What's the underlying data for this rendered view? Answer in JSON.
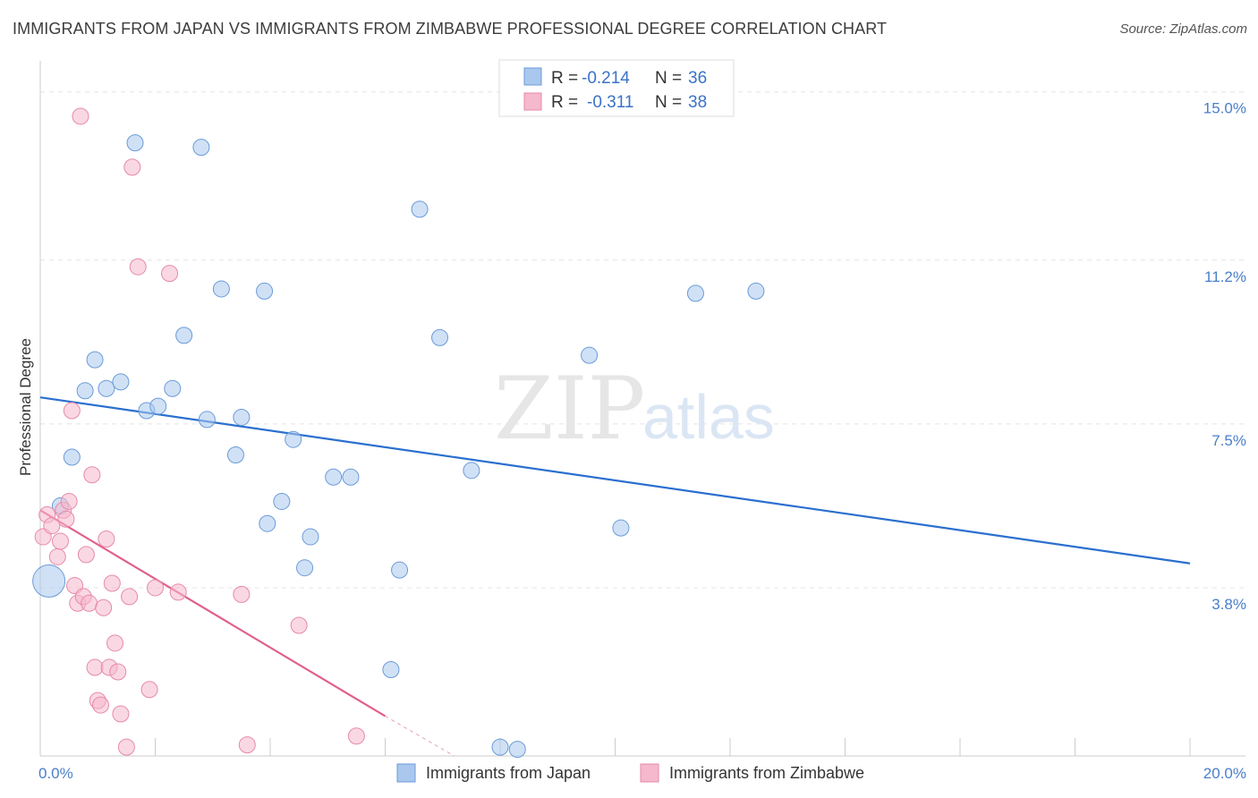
{
  "title": "IMMIGRANTS FROM JAPAN VS IMMIGRANTS FROM ZIMBABWE PROFESSIONAL DEGREE CORRELATION CHART",
  "source": "Source: ZipAtlas.com",
  "watermark": {
    "zip": "ZIP",
    "atlas": "atlas"
  },
  "chart_data": {
    "type": "scatter",
    "title": "IMMIGRANTS FROM JAPAN VS IMMIGRANTS FROM ZIMBABWE PROFESSIONAL DEGREE CORRELATION CHART",
    "xlabel": "",
    "ylabel": "Professional Degree",
    "xlim": [
      0,
      20
    ],
    "ylim": [
      0,
      15.5
    ],
    "x_tick_labels": {
      "left": "0.0%",
      "right": "20.0%"
    },
    "y_ticks": [
      {
        "value": 3.8,
        "label": "3.8%"
      },
      {
        "value": 7.5,
        "label": "7.5%"
      },
      {
        "value": 11.2,
        "label": "11.2%"
      },
      {
        "value": 15.0,
        "label": "15.0%"
      }
    ],
    "legend": [
      {
        "r_label": "R =",
        "r_value": "-0.214",
        "n_label": "N =",
        "n_value": "36",
        "color": "#aac8ee"
      },
      {
        "r_label": "R =",
        "r_value": "-0.311",
        "n_label": "N =",
        "n_value": "38",
        "color": "#f5b8cc"
      }
    ],
    "series": [
      {
        "name": "Immigrants from Japan",
        "color": "#aac8ee",
        "stroke": "#6a9bd8",
        "trend": {
          "x0": 0,
          "y0": 8.1,
          "x1": 20,
          "y1": 4.35,
          "color": "#2a6fcf"
        },
        "points": [
          [
            0.15,
            3.95,
            18
          ],
          [
            0.35,
            5.65,
            9
          ],
          [
            0.55,
            6.75,
            9
          ],
          [
            0.78,
            8.25,
            9
          ],
          [
            0.95,
            8.95,
            9
          ],
          [
            1.15,
            8.3,
            9
          ],
          [
            1.4,
            8.45,
            9
          ],
          [
            1.65,
            13.85,
            9
          ],
          [
            1.85,
            7.8,
            9
          ],
          [
            2.05,
            7.9,
            9
          ],
          [
            2.3,
            8.3,
            9
          ],
          [
            2.5,
            9.5,
            9
          ],
          [
            2.8,
            13.75,
            9
          ],
          [
            2.9,
            7.6,
            9
          ],
          [
            3.15,
            10.55,
            9
          ],
          [
            3.4,
            6.8,
            9
          ],
          [
            3.5,
            7.65,
            9
          ],
          [
            3.9,
            10.5,
            9
          ],
          [
            3.95,
            5.25,
            9
          ],
          [
            4.2,
            5.75,
            9
          ],
          [
            4.4,
            7.15,
            9
          ],
          [
            4.6,
            4.25,
            9
          ],
          [
            4.7,
            4.95,
            9
          ],
          [
            5.1,
            6.3,
            9
          ],
          [
            5.4,
            6.3,
            9
          ],
          [
            6.1,
            1.95,
            9
          ],
          [
            6.25,
            4.2,
            9
          ],
          [
            6.6,
            12.35,
            9
          ],
          [
            6.95,
            9.45,
            9
          ],
          [
            7.5,
            6.45,
            9
          ],
          [
            8.0,
            0.2,
            9
          ],
          [
            8.3,
            0.15,
            9
          ],
          [
            9.55,
            9.05,
            9
          ],
          [
            10.1,
            5.15,
            9
          ],
          [
            11.4,
            10.45,
            9
          ],
          [
            12.45,
            10.5,
            9
          ]
        ]
      },
      {
        "name": "Immigrants from Zimbabwe",
        "color": "#f5b8cc",
        "stroke": "#e68aa8",
        "trend": {
          "x0": 0,
          "y0": 5.55,
          "x1": 6.0,
          "y1": 0.9,
          "dash_x1": 7.2,
          "dash_y1": -0.05,
          "color": "#e0608e"
        },
        "points": [
          [
            0.05,
            4.95,
            9
          ],
          [
            0.12,
            5.45,
            9
          ],
          [
            0.2,
            5.2,
            9
          ],
          [
            0.3,
            4.5,
            9
          ],
          [
            0.35,
            4.85,
            9
          ],
          [
            0.4,
            5.55,
            9
          ],
          [
            0.45,
            5.35,
            9
          ],
          [
            0.5,
            5.75,
            9
          ],
          [
            0.55,
            7.8,
            9
          ],
          [
            0.6,
            3.85,
            9
          ],
          [
            0.65,
            3.45,
            9
          ],
          [
            0.7,
            14.45,
            9
          ],
          [
            0.75,
            3.6,
            9
          ],
          [
            0.8,
            4.55,
            9
          ],
          [
            0.85,
            3.45,
            9
          ],
          [
            0.9,
            6.35,
            9
          ],
          [
            0.95,
            2.0,
            9
          ],
          [
            1.0,
            1.25,
            9
          ],
          [
            1.05,
            1.15,
            9
          ],
          [
            1.1,
            3.35,
            9
          ],
          [
            1.15,
            4.9,
            9
          ],
          [
            1.2,
            2.0,
            9
          ],
          [
            1.25,
            3.9,
            9
          ],
          [
            1.3,
            2.55,
            9
          ],
          [
            1.35,
            1.9,
            9
          ],
          [
            1.4,
            0.95,
            9
          ],
          [
            1.5,
            0.2,
            9
          ],
          [
            1.55,
            3.6,
            9
          ],
          [
            1.6,
            13.3,
            9
          ],
          [
            1.7,
            11.05,
            9
          ],
          [
            1.9,
            1.5,
            9
          ],
          [
            2.0,
            3.8,
            9
          ],
          [
            2.4,
            3.7,
            9
          ],
          [
            3.5,
            3.65,
            9
          ],
          [
            3.6,
            0.25,
            9
          ],
          [
            4.5,
            2.95,
            9
          ],
          [
            5.5,
            0.45,
            9
          ],
          [
            2.25,
            10.9,
            9
          ]
        ]
      }
    ]
  }
}
